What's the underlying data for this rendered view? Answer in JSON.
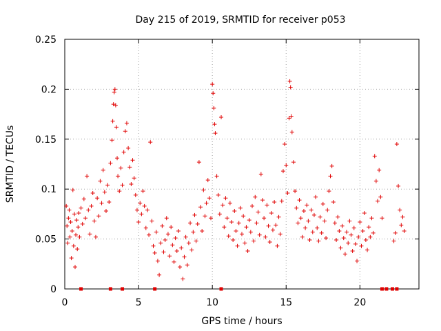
{
  "chart_data": {
    "type": "scatter",
    "title": "Day 215 of 2019, SRMTID for receiver p053",
    "xlabel": "GPS time / hours",
    "ylabel": "SRMTID / TECUs",
    "xlim": [
      0,
      24
    ],
    "ylim": [
      0,
      0.25
    ],
    "xticks": [
      0,
      5,
      10,
      15,
      20
    ],
    "xtick_labels": [
      "0",
      "5",
      "10",
      "15",
      "20"
    ],
    "yticks": [
      0,
      0.05,
      0.1,
      0.15,
      0.2,
      0.25
    ],
    "ytick_labels": [
      "0",
      "0.05",
      "0.1",
      "0.15",
      "0.2",
      "0.25"
    ],
    "grid": true,
    "marker": "plus",
    "series": [
      {
        "name": "p053",
        "color": "#e00000",
        "points": [
          [
            0.1,
            0.083
          ],
          [
            0.15,
            0.063
          ],
          [
            0.2,
            0.046
          ],
          [
            0.25,
            0.071
          ],
          [
            0.3,
            0.079
          ],
          [
            0.35,
            0.052
          ],
          [
            0.4,
            0.067
          ],
          [
            0.45,
            0.031
          ],
          [
            0.5,
            0.058
          ],
          [
            0.55,
            0.099
          ],
          [
            0.6,
            0.043
          ],
          [
            0.65,
            0.075
          ],
          [
            0.7,
            0.022
          ],
          [
            0.75,
            0.054
          ],
          [
            0.8,
            0.069
          ],
          [
            0.85,
            0.04
          ],
          [
            0.9,
            0.062
          ],
          [
            0.95,
            0.076
          ],
          [
            1.0,
            0.052
          ],
          [
            1.1,
            0.081
          ],
          [
            1.2,
            0.065
          ],
          [
            1.3,
            0.09
          ],
          [
            1.4,
            0.071
          ],
          [
            1.5,
            0.113
          ],
          [
            1.6,
            0.079
          ],
          [
            1.7,
            0.055
          ],
          [
            1.8,
            0.083
          ],
          [
            1.9,
            0.096
          ],
          [
            2.0,
            0.068
          ],
          [
            2.1,
            0.052
          ],
          [
            2.2,
            0.091
          ],
          [
            2.3,
            0.073
          ],
          [
            2.4,
            0.108
          ],
          [
            2.5,
            0.086
          ],
          [
            2.6,
            0.119
          ],
          [
            2.7,
            0.097
          ],
          [
            2.8,
            0.078
          ],
          [
            2.9,
            0.104
          ],
          [
            3.0,
            0.087
          ],
          [
            3.1,
            0.126
          ],
          [
            3.2,
            0.149
          ],
          [
            3.25,
            0.168
          ],
          [
            3.3,
            0.185
          ],
          [
            3.35,
            0.197
          ],
          [
            3.4,
            0.2
          ],
          [
            3.45,
            0.184
          ],
          [
            3.5,
            0.162
          ],
          [
            3.55,
            0.131
          ],
          [
            3.6,
            0.113
          ],
          [
            3.7,
            0.098
          ],
          [
            3.8,
            0.121
          ],
          [
            3.9,
            0.104
          ],
          [
            4.0,
            0.137
          ],
          [
            4.1,
            0.158
          ],
          [
            4.2,
            0.166
          ],
          [
            4.3,
            0.141
          ],
          [
            4.4,
            0.122
          ],
          [
            4.5,
            0.105
          ],
          [
            4.6,
            0.129
          ],
          [
            4.7,
            0.111
          ],
          [
            4.8,
            0.094
          ],
          [
            4.9,
            0.079
          ],
          [
            5.0,
            0.067
          ],
          [
            5.1,
            0.086
          ],
          [
            5.2,
            0.075
          ],
          [
            5.3,
            0.098
          ],
          [
            5.4,
            0.083
          ],
          [
            5.5,
            0.061
          ],
          [
            5.6,
            0.079
          ],
          [
            5.7,
            0.054
          ],
          [
            5.8,
            0.147
          ],
          [
            5.9,
            0.068
          ],
          [
            6.0,
            0.043
          ],
          [
            6.1,
            0.036
          ],
          [
            6.2,
            0.057
          ],
          [
            6.3,
            0.028
          ],
          [
            6.4,
            0.014
          ],
          [
            6.5,
            0.046
          ],
          [
            6.6,
            0.063
          ],
          [
            6.7,
            0.037
          ],
          [
            6.8,
            0.049
          ],
          [
            6.9,
            0.071
          ],
          [
            7.0,
            0.055
          ],
          [
            7.1,
            0.033
          ],
          [
            7.2,
            0.062
          ],
          [
            7.3,
            0.044
          ],
          [
            7.4,
            0.027
          ],
          [
            7.5,
            0.051
          ],
          [
            7.6,
            0.038
          ],
          [
            7.7,
            0.058
          ],
          [
            7.8,
            0.022
          ],
          [
            7.9,
            0.041
          ],
          [
            8.0,
            0.01
          ],
          [
            8.1,
            0.032
          ],
          [
            8.2,
            0.052
          ],
          [
            8.3,
            0.024
          ],
          [
            8.4,
            0.046
          ],
          [
            8.5,
            0.066
          ],
          [
            8.6,
            0.039
          ],
          [
            8.7,
            0.057
          ],
          [
            8.8,
            0.074
          ],
          [
            8.9,
            0.048
          ],
          [
            9.0,
            0.065
          ],
          [
            9.1,
            0.127
          ],
          [
            9.2,
            0.082
          ],
          [
            9.3,
            0.058
          ],
          [
            9.4,
            0.099
          ],
          [
            9.5,
            0.073
          ],
          [
            9.6,
            0.086
          ],
          [
            9.7,
            0.109
          ],
          [
            9.8,
            0.091
          ],
          [
            9.9,
            0.071
          ],
          [
            10.0,
            0.205
          ],
          [
            10.05,
            0.196
          ],
          [
            10.1,
            0.181
          ],
          [
            10.15,
            0.165
          ],
          [
            10.2,
            0.156
          ],
          [
            10.3,
            0.113
          ],
          [
            10.4,
            0.094
          ],
          [
            10.5,
            0.075
          ],
          [
            10.6,
            0.172
          ],
          [
            10.7,
            0.084
          ],
          [
            10.8,
            0.062
          ],
          [
            10.9,
            0.091
          ],
          [
            11.0,
            0.071
          ],
          [
            11.1,
            0.053
          ],
          [
            11.2,
            0.086
          ],
          [
            11.3,
            0.067
          ],
          [
            11.4,
            0.049
          ],
          [
            11.5,
            0.078
          ],
          [
            11.6,
            0.058
          ],
          [
            11.7,
            0.043
          ],
          [
            11.8,
            0.066
          ],
          [
            11.9,
            0.081
          ],
          [
            12.0,
            0.055
          ],
          [
            12.1,
            0.073
          ],
          [
            12.2,
            0.046
          ],
          [
            12.3,
            0.062
          ],
          [
            12.4,
            0.038
          ],
          [
            12.5,
            0.069
          ],
          [
            12.6,
            0.057
          ],
          [
            12.7,
            0.083
          ],
          [
            12.8,
            0.048
          ],
          [
            12.9,
            0.092
          ],
          [
            13.0,
            0.066
          ],
          [
            13.1,
            0.077
          ],
          [
            13.2,
            0.054
          ],
          [
            13.3,
            0.115
          ],
          [
            13.4,
            0.089
          ],
          [
            13.5,
            0.071
          ],
          [
            13.6,
            0.052
          ],
          [
            13.7,
            0.084
          ],
          [
            13.8,
            0.063
          ],
          [
            13.9,
            0.047
          ],
          [
            14.0,
            0.076
          ],
          [
            14.1,
            0.059
          ],
          [
            14.2,
            0.087
          ],
          [
            14.3,
            0.064
          ],
          [
            14.4,
            0.043
          ],
          [
            14.5,
            0.072
          ],
          [
            14.6,
            0.055
          ],
          [
            14.7,
            0.088
          ],
          [
            14.8,
            0.118
          ],
          [
            14.9,
            0.145
          ],
          [
            15.0,
            0.124
          ],
          [
            15.1,
            0.096
          ],
          [
            15.2,
            0.171
          ],
          [
            15.25,
            0.208
          ],
          [
            15.3,
            0.202
          ],
          [
            15.35,
            0.173
          ],
          [
            15.4,
            0.157
          ],
          [
            15.5,
            0.127
          ],
          [
            15.6,
            0.098
          ],
          [
            15.7,
            0.081
          ],
          [
            15.8,
            0.066
          ],
          [
            15.9,
            0.089
          ],
          [
            16.0,
            0.071
          ],
          [
            16.1,
            0.052
          ],
          [
            16.2,
            0.078
          ],
          [
            16.3,
            0.061
          ],
          [
            16.4,
            0.084
          ],
          [
            16.5,
            0.068
          ],
          [
            16.6,
            0.049
          ],
          [
            16.7,
            0.079
          ],
          [
            16.8,
            0.057
          ],
          [
            16.9,
            0.074
          ],
          [
            17.0,
            0.092
          ],
          [
            17.1,
            0.061
          ],
          [
            17.2,
            0.048
          ],
          [
            17.3,
            0.072
          ],
          [
            17.4,
            0.056
          ],
          [
            17.5,
            0.085
          ],
          [
            17.6,
            0.068
          ],
          [
            17.7,
            0.051
          ],
          [
            17.8,
            0.079
          ],
          [
            17.9,
            0.098
          ],
          [
            18.0,
            0.113
          ],
          [
            18.1,
            0.123
          ],
          [
            18.2,
            0.087
          ],
          [
            18.3,
            0.066
          ],
          [
            18.4,
            0.049
          ],
          [
            18.5,
            0.072
          ],
          [
            18.6,
            0.058
          ],
          [
            18.7,
            0.041
          ],
          [
            18.8,
            0.063
          ],
          [
            18.9,
            0.051
          ],
          [
            19.0,
            0.035
          ],
          [
            19.1,
            0.057
          ],
          [
            19.2,
            0.046
          ],
          [
            19.3,
            0.068
          ],
          [
            19.4,
            0.054
          ],
          [
            19.5,
            0.038
          ],
          [
            19.6,
            0.061
          ],
          [
            19.7,
            0.045
          ],
          [
            19.8,
            0.028
          ],
          [
            19.9,
            0.052
          ],
          [
            20.0,
            0.067
          ],
          [
            20.1,
            0.043
          ],
          [
            20.2,
            0.058
          ],
          [
            20.3,
            0.076
          ],
          [
            20.4,
            0.049
          ],
          [
            20.5,
            0.039
          ],
          [
            20.6,
            0.062
          ],
          [
            20.7,
            0.052
          ],
          [
            20.8,
            0.071
          ],
          [
            20.9,
            0.056
          ],
          [
            21.0,
            0.133
          ],
          [
            21.1,
            0.108
          ],
          [
            21.2,
            0.088
          ],
          [
            21.3,
            0.119
          ],
          [
            21.4,
            0.092
          ],
          [
            21.5,
            0.071
          ],
          [
            22.3,
            0.048
          ],
          [
            22.4,
            0.056
          ],
          [
            22.5,
            0.145
          ],
          [
            22.6,
            0.103
          ],
          [
            22.7,
            0.079
          ],
          [
            22.8,
            0.064
          ],
          [
            22.9,
            0.072
          ],
          [
            23.0,
            0.058
          ]
        ]
      }
    ],
    "zero_markers_x": [
      1.1,
      3.1,
      3.9,
      6.1,
      10.6,
      21.5,
      21.8,
      22.2,
      22.5
    ]
  }
}
